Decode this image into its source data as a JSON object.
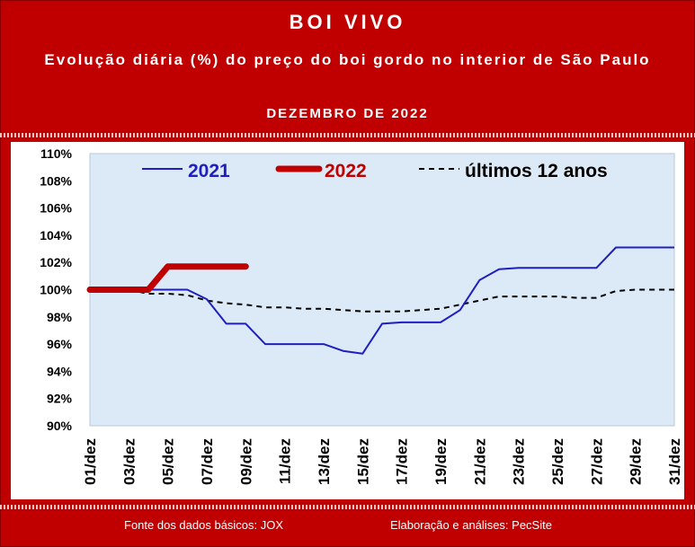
{
  "header": {
    "title": "BOI VIVO",
    "subtitle": "Evolução diária (%) do preço do boi gordo no interior de São Paulo",
    "period": "DEZEMBRO DE 2022"
  },
  "footer": {
    "source": "Fonte dos dados básicos: JOX",
    "credit": "Elaboração e análises: PecSite"
  },
  "colors": {
    "background": "#c00000",
    "plot_area": "#dce9f7",
    "series_2021": "#1f1fbf",
    "series_2022": "#c00000",
    "series_avg": "#000000"
  },
  "chart_data": {
    "type": "line",
    "title": "",
    "xlabel": "",
    "ylabel": "",
    "ylim": [
      90,
      110
    ],
    "y_ticks": [
      "90%",
      "92%",
      "94%",
      "96%",
      "98%",
      "100%",
      "102%",
      "104%",
      "106%",
      "108%",
      "110%"
    ],
    "x_ticks": [
      "01/dez",
      "03/dez",
      "05/dez",
      "07/dez",
      "09/dez",
      "11/dez",
      "13/dez",
      "15/dez",
      "17/dez",
      "19/dez",
      "21/dez",
      "23/dez",
      "25/dez",
      "27/dez",
      "29/dez",
      "31/dez"
    ],
    "grid": false,
    "legend_position": "top",
    "series": [
      {
        "name": "2021",
        "x": [
          1,
          2,
          3,
          4,
          5,
          6,
          7,
          8,
          9,
          10,
          11,
          12,
          13,
          14,
          15,
          16,
          17,
          18,
          19,
          20,
          21,
          22,
          23,
          24,
          25,
          26,
          27,
          28,
          29,
          30,
          31
        ],
        "values": [
          100.0,
          100.0,
          100.0,
          100.0,
          100.0,
          100.0,
          99.3,
          97.5,
          97.5,
          96.0,
          96.0,
          96.0,
          96.0,
          95.5,
          95.3,
          97.5,
          97.6,
          97.6,
          97.6,
          98.5,
          100.7,
          101.5,
          101.6,
          101.6,
          101.6,
          101.6,
          101.6,
          103.1,
          103.1,
          103.1,
          103.1
        ],
        "style": "solid"
      },
      {
        "name": "2022",
        "x": [
          1,
          2,
          3,
          4,
          5,
          6,
          7,
          8,
          9
        ],
        "values": [
          100.0,
          100.0,
          100.0,
          100.0,
          101.7,
          101.7,
          101.7,
          101.7,
          101.7
        ],
        "style": "thick"
      },
      {
        "name": "últimos 12 anos",
        "x": [
          1,
          2,
          3,
          4,
          5,
          6,
          7,
          8,
          9,
          10,
          11,
          12,
          13,
          14,
          15,
          16,
          17,
          18,
          19,
          20,
          21,
          22,
          23,
          24,
          25,
          26,
          27,
          28,
          29,
          30,
          31
        ],
        "values": [
          100.0,
          100.0,
          100.0,
          99.7,
          99.7,
          99.6,
          99.2,
          99.0,
          98.9,
          98.7,
          98.7,
          98.6,
          98.6,
          98.5,
          98.4,
          98.4,
          98.4,
          98.5,
          98.6,
          98.9,
          99.2,
          99.5,
          99.5,
          99.5,
          99.5,
          99.4,
          99.4,
          99.9,
          100.0,
          100.0,
          100.0
        ],
        "style": "dashed"
      }
    ]
  }
}
